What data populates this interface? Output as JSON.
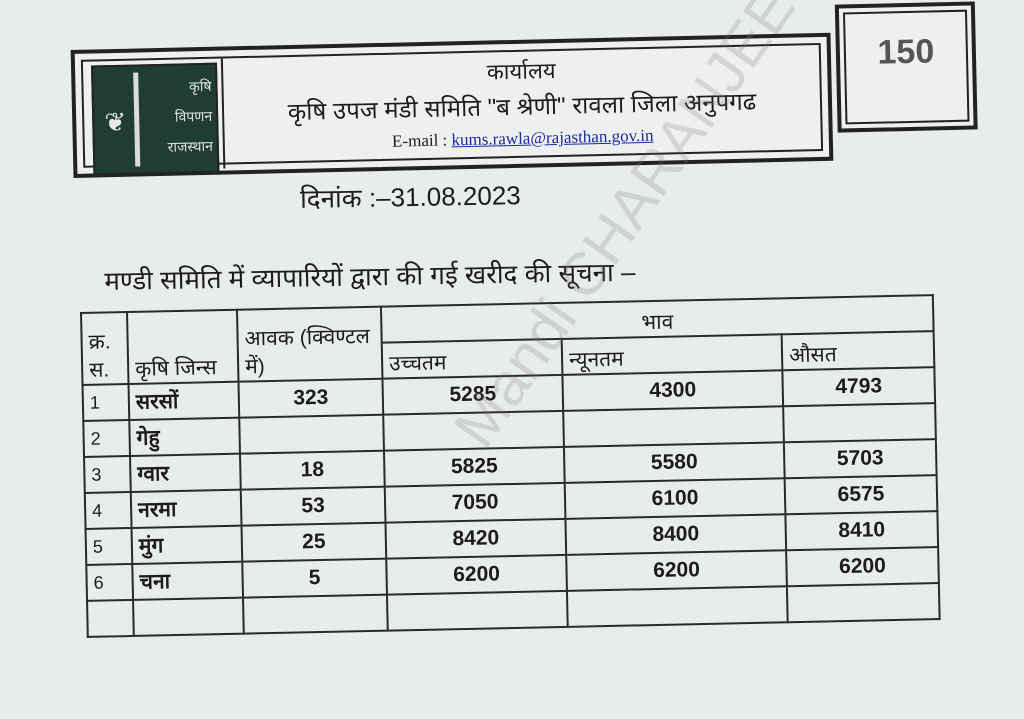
{
  "header": {
    "logo_text": [
      "कृषि",
      "विपणन",
      "राजस्थान"
    ],
    "office": "कार्यालय",
    "mandi_name": "कृषि उपज मंडी समिति \"ब श्रेणी\" रावला जिला अनुपगढ",
    "email_label": "E-mail :",
    "email": "kums.rawla@rajasthan.gov.in",
    "badge_text": "150"
  },
  "date": "दिनांक :–31.08.2023",
  "notice_title": "मण्डी समिति में व्यापारियों द्वारा की गई खरीद की सूचना –",
  "table": {
    "headers": {
      "sn": "क्र. स.",
      "commodity": "कृषि जिन्स",
      "arrival": "आवक (क्विण्टल में)",
      "price_group": "भाव",
      "max": "उच्चतम",
      "min": "न्यूनतम",
      "avg": "औसत"
    },
    "rows": [
      {
        "sn": "1",
        "commodity": "सरसों",
        "arrival": "323",
        "max": "5285",
        "min": "4300",
        "avg": "4793"
      },
      {
        "sn": "2",
        "commodity": "गेहु",
        "arrival": "",
        "max": "",
        "min": "",
        "avg": ""
      },
      {
        "sn": "3",
        "commodity": "ग्वार",
        "arrival": "18",
        "max": "5825",
        "min": "5580",
        "avg": "5703"
      },
      {
        "sn": "4",
        "commodity": "नरमा",
        "arrival": "53",
        "max": "7050",
        "min": "6100",
        "avg": "6575"
      },
      {
        "sn": "5",
        "commodity": "मुंग",
        "arrival": "25",
        "max": "8420",
        "min": "8400",
        "avg": "8410"
      },
      {
        "sn": "6",
        "commodity": "चना",
        "arrival": "5",
        "max": "6200",
        "min": "6200",
        "avg": "6200"
      },
      {
        "sn": "",
        "commodity": "",
        "arrival": "",
        "max": "",
        "min": "",
        "avg": ""
      }
    ]
  },
  "watermark": "Mandi CHARANJEET"
}
